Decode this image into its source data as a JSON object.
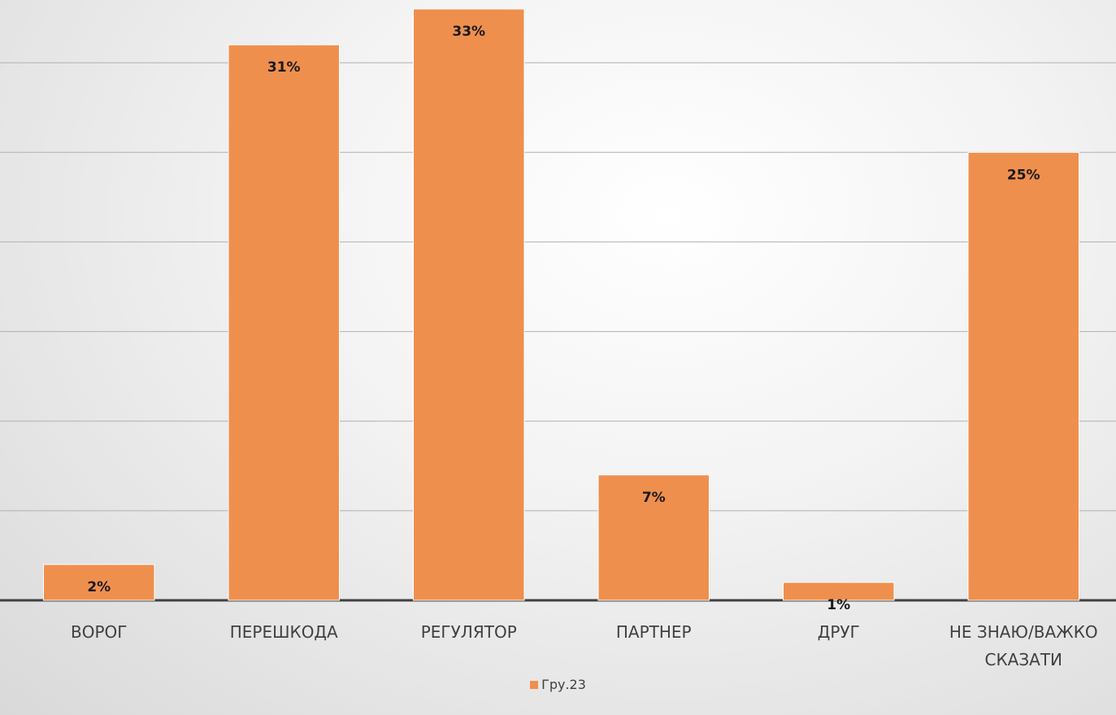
{
  "chart_data": {
    "type": "bar",
    "categories": [
      "ВОРОГ",
      "ПЕРЕШКОДА",
      "РЕГУЛЯТОР",
      "ПАРТНЕР",
      "ДРУГ",
      "НЕ ЗНАЮ/ВАЖКО СКАЗАТИ"
    ],
    "series": [
      {
        "name": "Гру.23",
        "color": "#ef8f4e",
        "values": [
          2,
          31,
          33,
          7,
          1,
          25
        ],
        "value_labels": [
          "2%",
          "31%",
          "33%",
          "7%",
          "1%",
          "25%"
        ]
      }
    ],
    "ylim": [
      0,
      35
    ],
    "yticks": [
      0,
      5,
      10,
      15,
      20,
      25,
      30
    ],
    "grid": true,
    "legend": "bottom"
  }
}
